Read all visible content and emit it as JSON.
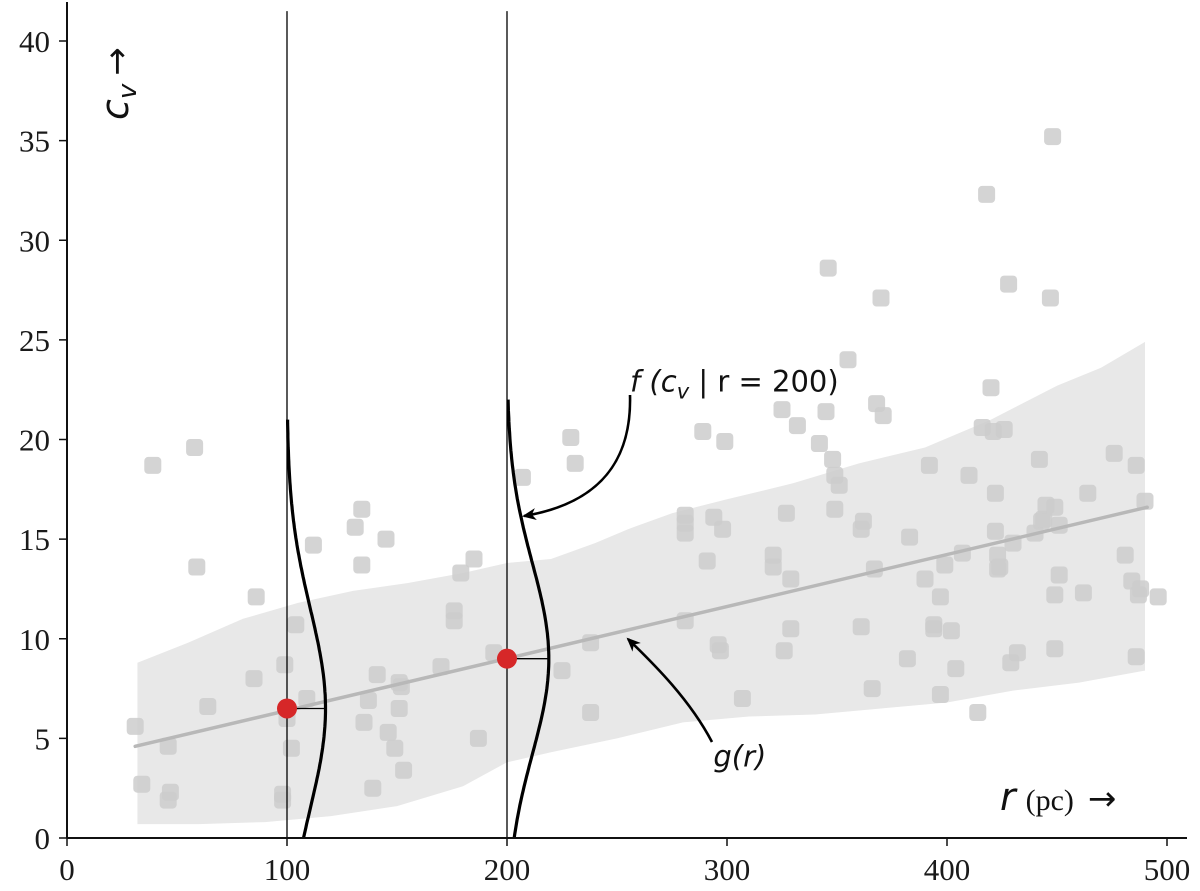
{
  "chart_data": {
    "type": "scatter",
    "xlim": [
      0,
      510
    ],
    "ylim": [
      0,
      42
    ],
    "x_ticks": [
      {
        "value": 0,
        "label": "0"
      },
      {
        "value": 100,
        "label": "100"
      },
      {
        "value": 200,
        "label": "200"
      },
      {
        "value": 300,
        "label": "300"
      },
      {
        "value": 400,
        "label": "400"
      },
      {
        "value": 500,
        "label": "500"
      }
    ],
    "y_ticks": [
      {
        "value": 0,
        "label": "0"
      },
      {
        "value": 5,
        "label": "5"
      },
      {
        "value": 10,
        "label": "10"
      },
      {
        "value": 15,
        "label": "15"
      },
      {
        "value": 20,
        "label": "20"
      },
      {
        "value": 25,
        "label": "25"
      },
      {
        "value": 30,
        "label": "30"
      },
      {
        "value": 35,
        "label": "35"
      },
      {
        "value": 40,
        "label": "40"
      }
    ],
    "xlabel": {
      "var": "r",
      "unit": "(pc)",
      "arrow": "→"
    },
    "ylabel": {
      "var": "c",
      "sub": "v",
      "arrow": "→"
    },
    "grid": false,
    "colors": {
      "points": "#cccccc",
      "band": "#e8e8e8",
      "trend": "#b8b8b8",
      "highlight": "#d62728",
      "lines": "#000000"
    },
    "points": [
      [
        31,
        5.6
      ],
      [
        34,
        2.7
      ],
      [
        39,
        18.7
      ],
      [
        46,
        4.6
      ],
      [
        46,
        1.9
      ],
      [
        47,
        2.3
      ],
      [
        59,
        13.6
      ],
      [
        58,
        19.6
      ],
      [
        64,
        6.6
      ],
      [
        86,
        12.1
      ],
      [
        85,
        8.0
      ],
      [
        99,
        8.7
      ],
      [
        98,
        1.9
      ],
      [
        98,
        2.2
      ],
      [
        100,
        6.0
      ],
      [
        102,
        4.5
      ],
      [
        104,
        10.7
      ],
      [
        109,
        7.0
      ],
      [
        112,
        14.7
      ],
      [
        131,
        15.6
      ],
      [
        134,
        13.7
      ],
      [
        134,
        16.5
      ],
      [
        135,
        5.8
      ],
      [
        137,
        6.9
      ],
      [
        139,
        2.5
      ],
      [
        141,
        8.2
      ],
      [
        145,
        15.0
      ],
      [
        146,
        5.3
      ],
      [
        149,
        4.5
      ],
      [
        151,
        7.8
      ],
      [
        151,
        6.5
      ],
      [
        153,
        3.4
      ],
      [
        152,
        7.6
      ],
      [
        170,
        8.6
      ],
      [
        176,
        10.9
      ],
      [
        176,
        11.4
      ],
      [
        179,
        13.3
      ],
      [
        185,
        14.0
      ],
      [
        187,
        5.0
      ],
      [
        194,
        9.3
      ],
      [
        207,
        18.1
      ],
      [
        225,
        8.4
      ],
      [
        229,
        20.1
      ],
      [
        231,
        18.8
      ],
      [
        238,
        6.3
      ],
      [
        238,
        9.8
      ],
      [
        281,
        16.2
      ],
      [
        281,
        15.8
      ],
      [
        281,
        15.3
      ],
      [
        281,
        10.9
      ],
      [
        289,
        20.4
      ],
      [
        291,
        13.9
      ],
      [
        294,
        16.1
      ],
      [
        296,
        9.7
      ],
      [
        297,
        9.4
      ],
      [
        298,
        15.5
      ],
      [
        299,
        19.9
      ],
      [
        307,
        7.0
      ],
      [
        321,
        14.2
      ],
      [
        321,
        13.6
      ],
      [
        325,
        21.5
      ],
      [
        326,
        9.4
      ],
      [
        327,
        16.3
      ],
      [
        329,
        10.5
      ],
      [
        329,
        13.0
      ],
      [
        332,
        20.7
      ],
      [
        342,
        19.8
      ],
      [
        345,
        21.4
      ],
      [
        346,
        28.6
      ],
      [
        348,
        19.0
      ],
      [
        349,
        18.2
      ],
      [
        349,
        16.5
      ],
      [
        351,
        17.7
      ],
      [
        355,
        24.0
      ],
      [
        361,
        10.6
      ],
      [
        361,
        15.5
      ],
      [
        362,
        15.9
      ],
      [
        366,
        7.5
      ],
      [
        367,
        13.5
      ],
      [
        368,
        21.8
      ],
      [
        370,
        27.1
      ],
      [
        371,
        21.2
      ],
      [
        382,
        9.0
      ],
      [
        383,
        15.1
      ],
      [
        390,
        13.0
      ],
      [
        392,
        18.7
      ],
      [
        394,
        10.5
      ],
      [
        394,
        10.7
      ],
      [
        397,
        12.1
      ],
      [
        397,
        7.2
      ],
      [
        399,
        13.7
      ],
      [
        402,
        10.4
      ],
      [
        404,
        8.5
      ],
      [
        407,
        14.3
      ],
      [
        410,
        18.2
      ],
      [
        414,
        6.3
      ],
      [
        416,
        20.6
      ],
      [
        418,
        32.3
      ],
      [
        420,
        22.6
      ],
      [
        421,
        20.4
      ],
      [
        422,
        17.3
      ],
      [
        422,
        15.4
      ],
      [
        423,
        14.2
      ],
      [
        423,
        13.5
      ],
      [
        424,
        13.6
      ],
      [
        426,
        20.5
      ],
      [
        428,
        27.8
      ],
      [
        429,
        8.8
      ],
      [
        430,
        14.8
      ],
      [
        432,
        9.3
      ],
      [
        440,
        15.3
      ],
      [
        442,
        19.0
      ],
      [
        443,
        15.9
      ],
      [
        444,
        16.0
      ],
      [
        445,
        16.7
      ],
      [
        447,
        27.1
      ],
      [
        448,
        35.2
      ],
      [
        449,
        9.5
      ],
      [
        449,
        12.2
      ],
      [
        451,
        13.2
      ],
      [
        449,
        16.6
      ],
      [
        451,
        15.7
      ],
      [
        462,
        12.3
      ],
      [
        464,
        17.3
      ],
      [
        476,
        19.3
      ],
      [
        481,
        14.2
      ],
      [
        484,
        12.9
      ],
      [
        486,
        9.1
      ],
      [
        486,
        18.7
      ],
      [
        487,
        12.2
      ],
      [
        488,
        12.5
      ],
      [
        490,
        16.9
      ],
      [
        496,
        12.1
      ]
    ],
    "band_upper": [
      [
        32,
        8.8
      ],
      [
        55,
        9.8
      ],
      [
        80,
        11.0
      ],
      [
        105,
        11.8
      ],
      [
        130,
        12.4
      ],
      [
        155,
        12.8
      ],
      [
        180,
        13.3
      ],
      [
        200,
        13.8
      ],
      [
        220,
        14.0
      ],
      [
        240,
        14.8
      ],
      [
        255,
        15.5
      ],
      [
        275,
        16.3
      ],
      [
        300,
        17.0
      ],
      [
        330,
        17.8
      ],
      [
        360,
        18.8
      ],
      [
        390,
        19.6
      ],
      [
        420,
        21.0
      ],
      [
        450,
        22.7
      ],
      [
        470,
        23.6
      ],
      [
        490,
        24.9
      ]
    ],
    "band_lower": [
      [
        32,
        0.7
      ],
      [
        60,
        0.7
      ],
      [
        90,
        0.8
      ],
      [
        120,
        1.1
      ],
      [
        150,
        1.6
      ],
      [
        180,
        2.6
      ],
      [
        200,
        3.8
      ],
      [
        220,
        4.3
      ],
      [
        250,
        5.0
      ],
      [
        280,
        5.8
      ],
      [
        310,
        6.1
      ],
      [
        340,
        6.2
      ],
      [
        370,
        6.5
      ],
      [
        400,
        6.8
      ],
      [
        430,
        7.4
      ],
      [
        460,
        7.8
      ],
      [
        490,
        8.4
      ]
    ],
    "trend_line": {
      "x0": 31,
      "y0": 4.6,
      "x1": 491,
      "y1": 16.6
    },
    "highlight_points": [
      {
        "x": 100,
        "y": 6.5
      },
      {
        "x": 200,
        "y": 9.0
      }
    ],
    "vertical_lines": [
      {
        "x": 100,
        "y_top": 41.5
      },
      {
        "x": 200,
        "y_top": 41.5
      }
    ],
    "distributions": [
      {
        "x": 100,
        "center": 6.5,
        "sigma": 5.0,
        "amplitude": 17.5,
        "y_from": 0,
        "y_to": 21.0
      },
      {
        "x": 200,
        "center": 9.0,
        "sigma": 4.8,
        "amplitude": 19.0,
        "y_from": 0,
        "y_to": 22.0
      }
    ],
    "annotations": [
      {
        "id": "f-label",
        "text_parts": [
          "f (c",
          "v",
          " | r = 200)"
        ],
        "x": 250,
        "y": 22.8
      },
      {
        "id": "g-label",
        "text": "g(r)",
        "x": 312,
        "y": 4.1
      }
    ]
  }
}
